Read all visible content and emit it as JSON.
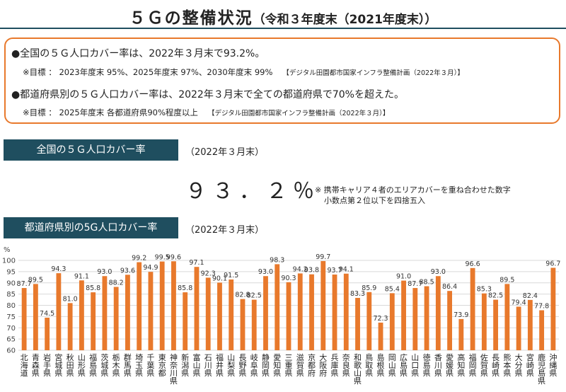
{
  "title": {
    "main": "５Ｇの整備状況",
    "sub": "（令和３年度末（2021年度末））"
  },
  "summary": {
    "line1": "●全国の５Ｇ人口カバー率は、2022年３月末で93.2%。",
    "line2": "※目標 ： 2023年度末 95%、2025年度末 97%、2030年度末 99%",
    "line2_ref": "【デジタル田園都市国家インフラ整備計画（2022年３月）】",
    "line3": "●都道府県別の５Ｇ人口カバー率は、2022年３月末で全ての都道府県で70%を超えた。",
    "line4": "※目標 ： 2025年度末 各都道府県90%程度以上",
    "line4_ref": "【デジタル田園都市国家インフラ整備計画（2022年３月）】"
  },
  "national": {
    "label": "全国の５Ｇ人口カバー率",
    "date": "（2022年３月末）",
    "value": "９３．２％",
    "note1": "※ 携帯キャリア４者のエリアカバーを重ね合わせた数字",
    "note2": "小数点第２位以下を四捨五入"
  },
  "prefectural": {
    "label": "都道府県別の5G人口カバー率",
    "date": "（2022年３月末）"
  },
  "colors": {
    "bar": "#e8792c",
    "accent": "#1f4e5f"
  },
  "chart_data": {
    "type": "bar",
    "ylabel": "%",
    "ylim": [
      60,
      100
    ],
    "yticks": [
      60,
      65,
      70,
      75,
      80,
      85,
      90,
      95,
      100
    ],
    "grid": true,
    "categories": [
      "北海道",
      "青森県",
      "岩手県",
      "宮城県",
      "秋田県",
      "山形県",
      "福島県",
      "茨城県",
      "栃木県",
      "群馬県",
      "埼玉県",
      "千葉県",
      "東京都",
      "神奈川県",
      "新潟県",
      "富山県",
      "石川県",
      "福井県",
      "山梨県",
      "長野県",
      "岐阜県",
      "静岡県",
      "愛知県",
      "三重県",
      "滋賀県",
      "京都府",
      "大阪府",
      "兵庫県",
      "奈良県",
      "和歌山県",
      "鳥取県",
      "島根県",
      "岡山県",
      "広島県",
      "山口県",
      "徳島県",
      "香川県",
      "愛媛県",
      "高知県",
      "福岡県",
      "佐賀県",
      "長崎県",
      "熊本県",
      "大分県",
      "宮崎県",
      "鹿児島県",
      "沖縄県"
    ],
    "values": [
      87.7,
      89.5,
      74.5,
      94.3,
      81.0,
      91.1,
      85.8,
      93.0,
      88.2,
      93.6,
      99.2,
      94.9,
      99.5,
      99.6,
      85.8,
      97.1,
      92.3,
      90.1,
      91.5,
      82.8,
      82.5,
      93.0,
      98.3,
      90.3,
      94.2,
      93.8,
      99.7,
      93.7,
      94.1,
      83.3,
      85.9,
      72.3,
      85.4,
      91.0,
      87.7,
      88.5,
      93.0,
      86.4,
      73.9,
      96.6,
      85.3,
      82.5,
      89.5,
      79.4,
      82.4,
      77.8,
      96.7
    ],
    "labels": [
      "87.7",
      "89.5",
      "74.5",
      "94.3",
      "81.0",
      "91.1",
      "85.8",
      "93.0",
      "88.2",
      "93.6",
      "99.2",
      "94.9",
      "99.5",
      "99.6",
      "85.8",
      "97.1",
      "92.3",
      "90.1",
      "91.5",
      "82.8",
      "82.5",
      "93.0",
      "98.3",
      "90.3",
      "94.2",
      "93.8",
      "99.7",
      "93.7",
      "94.1",
      "83.3",
      "85.9",
      "72.3",
      "85.4",
      "91.0",
      "87.7",
      "88.5",
      "93.0",
      "86.4",
      "73.9",
      "96.6",
      "85.3",
      "82.5",
      "89.5",
      "79.4",
      "82.4",
      "77.8",
      "96.7"
    ]
  }
}
